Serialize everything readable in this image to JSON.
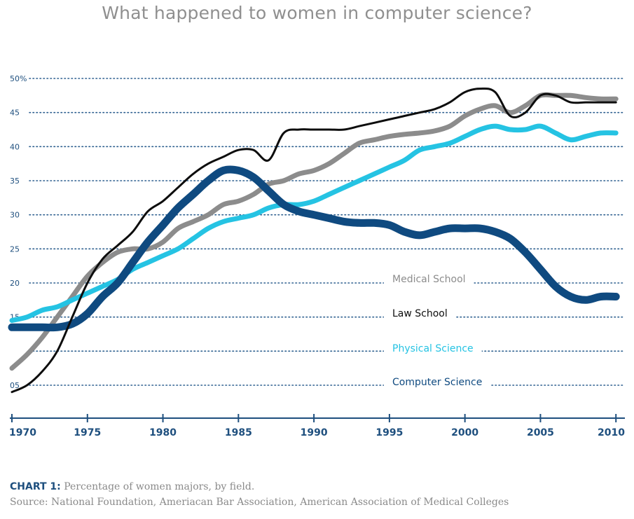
{
  "chart_data": {
    "type": "line",
    "title": "What happened to women in computer science?",
    "xlabel": "",
    "ylabel": "",
    "xlim": [
      1970,
      2010.5
    ],
    "ylim": [
      3,
      52
    ],
    "grid": true,
    "legend": "inline labels right of center",
    "x_ticks": [
      "1970",
      "1975",
      "1980",
      "1985",
      "1990",
      "1995",
      "2000",
      "2005",
      "2010"
    ],
    "y_ticks": [
      {
        "value": 50,
        "label": "50%"
      },
      {
        "value": 45,
        "label": "45"
      },
      {
        "value": 40,
        "label": "40"
      },
      {
        "value": 35,
        "label": "35"
      },
      {
        "value": 30,
        "label": "30"
      },
      {
        "value": 25,
        "label": "25"
      },
      {
        "value": 20,
        "label": "20"
      },
      {
        "value": 15,
        "label": "15"
      },
      {
        "value": 10,
        "label": ""
      },
      {
        "value": 5,
        "label": "05"
      }
    ],
    "series": [
      {
        "name": "Medical School",
        "color": "#8c8c8c",
        "x": [
          1970,
          1971,
          1972,
          1973,
          1974,
          1975,
          1976,
          1977,
          1978,
          1979,
          1980,
          1981,
          1982,
          1983,
          1984,
          1985,
          1986,
          1987,
          1988,
          1989,
          1990,
          1991,
          1992,
          1993,
          1994,
          1995,
          1996,
          1997,
          1998,
          1999,
          2000,
          2001,
          2002,
          2003,
          2004,
          2005,
          2006,
          2007,
          2008,
          2009,
          2010
        ],
        "y": [
          7.5,
          9.5,
          12,
          15,
          18,
          21,
          23,
          24.5,
          25,
          25,
          26,
          28,
          29,
          30,
          31.5,
          32,
          33,
          34.5,
          35,
          36,
          36.5,
          37.5,
          39,
          40.5,
          41,
          41.5,
          41.8,
          42,
          42.3,
          43,
          44.5,
          45.5,
          46,
          45,
          46,
          47.5,
          47.5,
          47.5,
          47.2,
          47,
          47
        ]
      },
      {
        "name": "Law School",
        "color": "#0d0d0d",
        "x": [
          1970,
          1971,
          1972,
          1973,
          1974,
          1975,
          1976,
          1977,
          1978,
          1979,
          1980,
          1981,
          1982,
          1983,
          1984,
          1985,
          1986,
          1987,
          1988,
          1989,
          1990,
          1991,
          1992,
          1993,
          1994,
          1995,
          1996,
          1997,
          1998,
          1999,
          2000,
          2001,
          2002,
          2003,
          2004,
          2005,
          2006,
          2007,
          2008,
          2009,
          2010
        ],
        "y": [
          4,
          5,
          7,
          10,
          15,
          20,
          23.5,
          25.5,
          27.5,
          30.5,
          32,
          34,
          36,
          37.5,
          38.5,
          39.5,
          39.5,
          38,
          42,
          42.5,
          42.5,
          42.5,
          42.5,
          43,
          43.5,
          44,
          44.5,
          45,
          45.5,
          46.5,
          48,
          48.5,
          48,
          44.5,
          45,
          47.5,
          47.5,
          46.5,
          46.5,
          46.5,
          46.5
        ]
      },
      {
        "name": "Physical Science",
        "color": "#25c3e3",
        "x": [
          1970,
          1971,
          1972,
          1973,
          1974,
          1975,
          1976,
          1977,
          1978,
          1979,
          1980,
          1981,
          1982,
          1983,
          1984,
          1985,
          1986,
          1987,
          1988,
          1989,
          1990,
          1991,
          1992,
          1993,
          1994,
          1995,
          1996,
          1997,
          1998,
          1999,
          2000,
          2001,
          2002,
          2003,
          2004,
          2005,
          2006,
          2007,
          2008,
          2009,
          2010
        ],
        "y": [
          14.5,
          15,
          16,
          16.5,
          17.5,
          18.5,
          19.5,
          20.5,
          22,
          23,
          24,
          25,
          26.5,
          28,
          29,
          29.5,
          30,
          31,
          31.5,
          31.5,
          32,
          33,
          34,
          35,
          36,
          37,
          38,
          39.5,
          40,
          40.5,
          41.5,
          42.5,
          43,
          42.5,
          42.5,
          43,
          42,
          41,
          41.5,
          42,
          42
        ]
      },
      {
        "name": "Computer Science",
        "color": "#0f4a80",
        "x": [
          1970,
          1971,
          1972,
          1973,
          1974,
          1975,
          1976,
          1977,
          1978,
          1979,
          1980,
          1981,
          1982,
          1983,
          1984,
          1985,
          1986,
          1987,
          1988,
          1989,
          1990,
          1991,
          1992,
          1993,
          1994,
          1995,
          1996,
          1997,
          1998,
          1999,
          2000,
          2001,
          2002,
          2003,
          2004,
          2005,
          2006,
          2007,
          2008,
          2009,
          2010
        ],
        "y": [
          13.5,
          13.5,
          13.5,
          13.5,
          14,
          15.5,
          18,
          20,
          23,
          26,
          28.5,
          31,
          33,
          35,
          36.5,
          36.5,
          35.5,
          33.5,
          31.5,
          30.5,
          30,
          29.5,
          29,
          28.8,
          28.8,
          28.5,
          27.5,
          27,
          27.5,
          28,
          28,
          28,
          27.5,
          26.5,
          24.5,
          22,
          19.5,
          18,
          17.5,
          18,
          18
        ]
      }
    ],
    "annotations": [
      {
        "text": "Medical School",
        "color": "#8c8c8c",
        "series": "Medical School"
      },
      {
        "text": "Law School",
        "color": "#0d0d0d",
        "series": "Law School"
      },
      {
        "text": "Physical Science",
        "color": "#25c3e3",
        "series": "Physical Science"
      },
      {
        "text": "Computer Science",
        "color": "#0f4a80",
        "series": "Computer Science"
      }
    ]
  },
  "caption": {
    "lead": "CHART 1:",
    "text": "Percentage of women majors, by field.",
    "source": "Source: National Foundation, Ameriacan Bar Association, American Association of Medical Colleges"
  }
}
